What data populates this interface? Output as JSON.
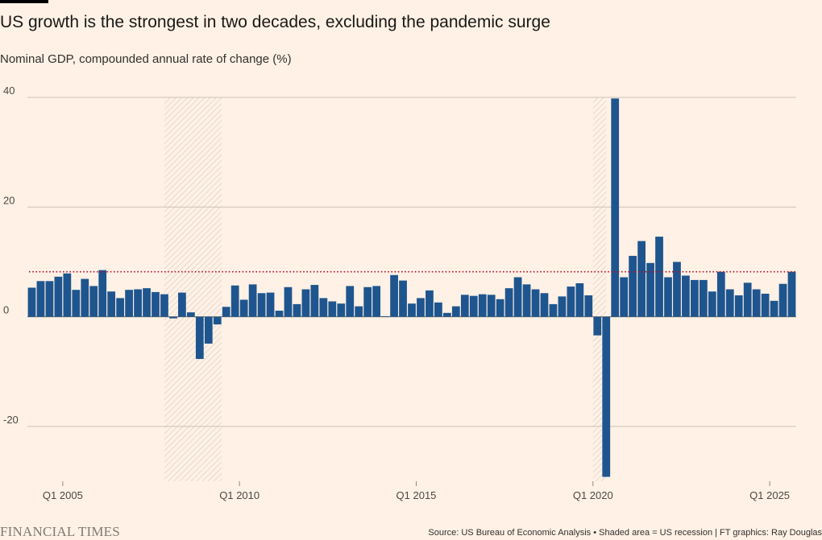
{
  "header": {
    "title": "US growth is the strongest in two decades, excluding the pandemic surge",
    "subtitle": "Nominal GDP, compounded annual rate of change (%)"
  },
  "footer": {
    "logo": "FINANCIAL TIMES",
    "source": "Source: US Bureau of Economic Analysis • Shaded area = US recession | FT graphics: Ray Douglas"
  },
  "colors": {
    "bar": "#1e558e",
    "reference_line": "#b0132e",
    "gridline": "#ccc1b7",
    "recession_hatch": "#d8cfc5"
  },
  "chart_data": {
    "type": "bar",
    "title": "US growth is the strongest in two decades, excluding the pandemic surge",
    "ylabel": "Nominal GDP, compounded annual rate of change (%)",
    "ylim": [
      -30,
      40
    ],
    "yticks": [
      40,
      20,
      0,
      -20
    ],
    "ytick_labels": [
      "40",
      "20",
      "0",
      "-20"
    ],
    "grid": true,
    "x_start": "2004Q1",
    "xticks": [
      {
        "quarter_index": 4,
        "label": "Q1 2005"
      },
      {
        "quarter_index": 24,
        "label": "Q1 2010"
      },
      {
        "quarter_index": 44,
        "label": "Q1 2015"
      },
      {
        "quarter_index": 64,
        "label": "Q1 2020"
      },
      {
        "quarter_index": 84,
        "label": "Q1 2025"
      }
    ],
    "values": [
      5.3,
      6.5,
      6.5,
      7.3,
      7.9,
      4.9,
      6.9,
      5.6,
      8.5,
      4.6,
      3.4,
      4.9,
      5.0,
      5.2,
      4.5,
      4.1,
      -0.3,
      4.4,
      0.8,
      -7.7,
      -4.9,
      -1.4,
      1.8,
      5.7,
      3.1,
      5.9,
      4.3,
      4.4,
      1.1,
      5.4,
      2.3,
      5.0,
      5.8,
      3.4,
      2.8,
      2.4,
      5.6,
      1.9,
      5.4,
      5.6,
      0.1,
      7.6,
      6.6,
      2.4,
      3.4,
      4.8,
      2.6,
      0.7,
      1.9,
      4.0,
      3.8,
      4.1,
      4.0,
      3.2,
      5.2,
      7.2,
      5.9,
      5.0,
      4.3,
      2.3,
      3.7,
      5.5,
      6.1,
      3.9,
      -3.4,
      -29.2,
      39.8,
      7.2,
      11.1,
      13.8,
      9.8,
      14.6,
      7.2,
      10.0,
      7.5,
      6.7,
      6.7,
      4.6,
      8.2,
      5.0,
      3.9,
      6.2,
      5.0,
      4.2,
      2.9,
      6.0,
      8.2
    ],
    "reference_line": {
      "value": 8.2,
      "style": "dotted"
    },
    "recessions": [
      {
        "start_index": 15.5,
        "end_index": 22,
        "label": "US recession"
      },
      {
        "start_index": 64,
        "end_index": 65.5,
        "label": "US recession"
      }
    ]
  }
}
